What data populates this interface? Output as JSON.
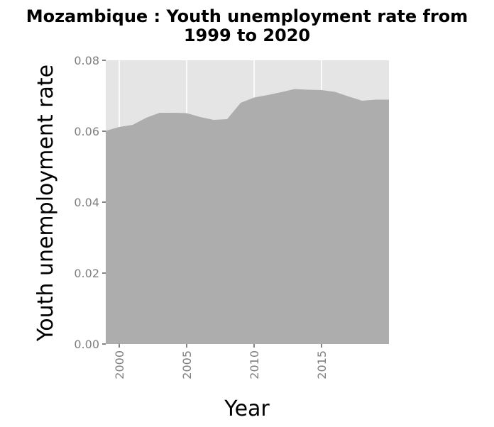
{
  "chart_data": {
    "type": "area",
    "title_line1": "Mozambique : Youth unemployment rate from",
    "title_line2": "1999 to 2020",
    "xlabel": "Year",
    "ylabel": "Youth unemployment rate",
    "xlim": [
      1999,
      2020
    ],
    "ylim": [
      0,
      0.08
    ],
    "x_ticks": [
      2000,
      2005,
      2010,
      2015
    ],
    "x_tick_labels": [
      "2000",
      "2005",
      "2010",
      "2015"
    ],
    "y_ticks": [
      0,
      0.02,
      0.04,
      0.06,
      0.08
    ],
    "y_tick_labels": [
      "0.00",
      "0.02",
      "0.04",
      "0.06",
      "0.08"
    ],
    "grid": true,
    "series": [
      {
        "x": [
          1999,
          2000,
          2001,
          2002,
          2003,
          2004,
          2005,
          2006,
          2007,
          2008,
          2009,
          2010,
          2011,
          2012,
          2013,
          2014,
          2015,
          2016,
          2017,
          2018,
          2019,
          2020
        ],
        "values": [
          0.0601,
          0.0612,
          0.0618,
          0.0638,
          0.0652,
          0.0652,
          0.0651,
          0.064,
          0.0632,
          0.0634,
          0.068,
          0.0695,
          0.0702,
          0.071,
          0.0719,
          0.0717,
          0.0716,
          0.0711,
          0.0698,
          0.0686,
          0.0689,
          0.0689
        ]
      }
    ],
    "colors": {
      "panel": "#e5e5e5",
      "area": "#adadad",
      "grid": "#ffffff",
      "tick_text": "#7f7f7f",
      "text": "#000000"
    }
  }
}
